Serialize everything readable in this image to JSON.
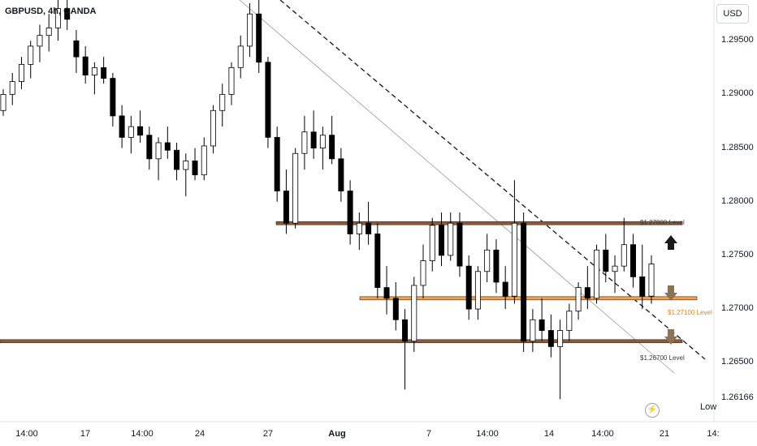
{
  "symbol_title": "GBPUSD, 4h, OANDA",
  "currency": "USD",
  "low_label": "Low",
  "lightning_icon": "lightning-icon",
  "colors": {
    "candle_up": "#ffffff",
    "candle_down": "#000000",
    "candle_border": "#000000",
    "level_brown": "#8b5a3c",
    "level_orange": "#f0a050",
    "arrow_black": "#1a1a1a",
    "arrow_brown": "#8b7355"
  },
  "chart_data": {
    "type": "candlestick",
    "price_axis": {
      "ticks": [
        "1.29500",
        "1.29000",
        "1.28500",
        "1.28000",
        "1.27500",
        "1.27000",
        "1.26500",
        "1.26166"
      ],
      "ylim": [
        1.2595,
        1.2988
      ]
    },
    "time_axis": {
      "ticks": [
        "14:00",
        "17",
        "14:00",
        "24",
        "27",
        "Aug",
        "7",
        "14:00",
        "14",
        "14:00",
        "21",
        "14:"
      ]
    },
    "levels": [
      {
        "label": "$1.27800 Level",
        "price": 1.278,
        "color": "brown"
      },
      {
        "label": "$1.27100 Level",
        "price": 1.271,
        "color": "orange"
      },
      {
        "label": "$1.26700 Level",
        "price": 1.267,
        "color": "brown"
      }
    ],
    "low_value": "1.26166",
    "candles": [
      [
        1.2885,
        1.2905,
        1.288,
        1.29
      ],
      [
        1.29,
        1.292,
        1.289,
        1.2912
      ],
      [
        1.2912,
        1.2935,
        1.2905,
        1.2928
      ],
      [
        1.2928,
        1.295,
        1.2915,
        1.2945
      ],
      [
        1.2945,
        1.2965,
        1.293,
        1.2955
      ],
      [
        1.2955,
        1.2975,
        1.294,
        1.2962
      ],
      [
        1.2962,
        1.299,
        1.295,
        1.298
      ],
      [
        1.298,
        1.2995,
        1.296,
        1.297
      ],
      [
        1.295,
        1.296,
        1.292,
        1.2935
      ],
      [
        1.2935,
        1.2945,
        1.291,
        1.2918
      ],
      [
        1.2918,
        1.293,
        1.29,
        1.2925
      ],
      [
        1.2925,
        1.2935,
        1.291,
        1.2915
      ],
      [
        1.2915,
        1.292,
        1.287,
        1.288
      ],
      [
        1.288,
        1.289,
        1.285,
        1.286
      ],
      [
        1.286,
        1.288,
        1.2845,
        1.287
      ],
      [
        1.287,
        1.2885,
        1.2855,
        1.2862
      ],
      [
        1.2862,
        1.287,
        1.283,
        1.284
      ],
      [
        1.284,
        1.286,
        1.282,
        1.2855
      ],
      [
        1.2855,
        1.287,
        1.284,
        1.2848
      ],
      [
        1.2848,
        1.2855,
        1.282,
        1.283
      ],
      [
        1.283,
        1.2845,
        1.2805,
        1.2838
      ],
      [
        1.2838,
        1.285,
        1.282,
        1.2825
      ],
      [
        1.2825,
        1.286,
        1.282,
        1.2852
      ],
      [
        1.2852,
        1.289,
        1.2845,
        1.2885
      ],
      [
        1.2885,
        1.291,
        1.287,
        1.29
      ],
      [
        1.29,
        1.293,
        1.289,
        1.2925
      ],
      [
        1.2925,
        1.2955,
        1.2915,
        1.2945
      ],
      [
        1.2945,
        1.2985,
        1.2935,
        1.2975
      ],
      [
        1.2975,
        1.299,
        1.292,
        1.293
      ],
      [
        1.293,
        1.2935,
        1.285,
        1.286
      ],
      [
        1.286,
        1.287,
        1.28,
        1.281
      ],
      [
        1.281,
        1.283,
        1.277,
        1.278
      ],
      [
        1.278,
        1.285,
        1.2775,
        1.2845
      ],
      [
        1.2845,
        1.288,
        1.283,
        1.2865
      ],
      [
        1.2865,
        1.2885,
        1.284,
        1.285
      ],
      [
        1.285,
        1.287,
        1.283,
        1.2862
      ],
      [
        1.2862,
        1.288,
        1.2835,
        1.284
      ],
      [
        1.284,
        1.285,
        1.28,
        1.281
      ],
      [
        1.281,
        1.282,
        1.276,
        1.277
      ],
      [
        1.277,
        1.279,
        1.2755,
        1.278
      ],
      [
        1.278,
        1.28,
        1.276,
        1.277
      ],
      [
        1.277,
        1.278,
        1.271,
        1.272
      ],
      [
        1.272,
        1.274,
        1.2695,
        1.271
      ],
      [
        1.271,
        1.2725,
        1.268,
        1.269
      ],
      [
        1.269,
        1.27,
        1.2625,
        1.267
      ],
      [
        1.267,
        1.273,
        1.266,
        1.2722
      ],
      [
        1.2722,
        1.276,
        1.271,
        1.2745
      ],
      [
        1.2745,
        1.2785,
        1.2735,
        1.2778
      ],
      [
        1.2778,
        1.279,
        1.274,
        1.275
      ],
      [
        1.275,
        1.279,
        1.2745,
        1.278
      ],
      [
        1.278,
        1.279,
        1.273,
        1.274
      ],
      [
        1.274,
        1.275,
        1.269,
        1.27
      ],
      [
        1.27,
        1.274,
        1.269,
        1.2735
      ],
      [
        1.2735,
        1.277,
        1.2725,
        1.2755
      ],
      [
        1.2755,
        1.2765,
        1.2715,
        1.2725
      ],
      [
        1.2725,
        1.274,
        1.27,
        1.2712
      ],
      [
        1.2712,
        1.282,
        1.2705,
        1.278
      ],
      [
        1.278,
        1.279,
        1.266,
        1.267
      ],
      [
        1.267,
        1.27,
        1.266,
        1.269
      ],
      [
        1.269,
        1.271,
        1.267,
        1.268
      ],
      [
        1.268,
        1.2695,
        1.2655,
        1.2665
      ],
      [
        1.2665,
        1.269,
        1.2616,
        1.268
      ],
      [
        1.268,
        1.2705,
        1.267,
        1.2698
      ],
      [
        1.2698,
        1.2725,
        1.269,
        1.272
      ],
      [
        1.272,
        1.274,
        1.27,
        1.271
      ],
      [
        1.271,
        1.276,
        1.2705,
        1.2755
      ],
      [
        1.2755,
        1.277,
        1.2725,
        1.2735
      ],
      [
        1.2735,
        1.275,
        1.2715,
        1.274
      ],
      [
        1.274,
        1.2785,
        1.2735,
        1.276
      ],
      [
        1.276,
        1.277,
        1.272,
        1.273
      ],
      [
        1.273,
        1.276,
        1.27,
        1.2712
      ],
      [
        1.2712,
        1.275,
        1.2705,
        1.2742
      ]
    ]
  }
}
